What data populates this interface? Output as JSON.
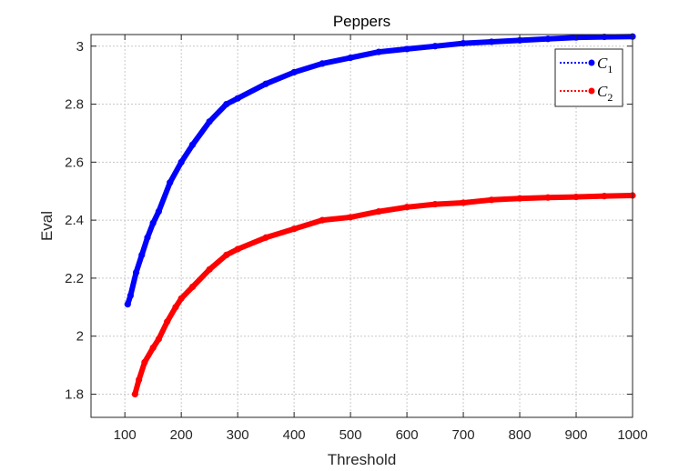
{
  "chart_data": {
    "type": "line",
    "title": "Peppers",
    "xlabel": "Threshold",
    "ylabel": "Eval",
    "xlim": [
      40,
      1000
    ],
    "ylim": [
      1.72,
      3.04
    ],
    "xticks": [
      100,
      200,
      300,
      400,
      500,
      600,
      700,
      800,
      900,
      1000
    ],
    "yticks": [
      1.8,
      2,
      2.2,
      2.4,
      2.6,
      2.8,
      3
    ],
    "ytick_labels": [
      "1.8",
      "2",
      "2.2",
      "2.4",
      "2.6",
      "2.8",
      "3"
    ],
    "grid": true,
    "legend_position": "top-right",
    "series": [
      {
        "name": "C",
        "name_subscript": "1",
        "color": "#0000ff",
        "x": [
          105,
          110,
          120,
          130,
          140,
          150,
          160,
          180,
          200,
          220,
          250,
          280,
          300,
          350,
          400,
          450,
          500,
          550,
          600,
          650,
          700,
          750,
          800,
          850,
          900,
          950,
          1000
        ],
        "y": [
          2.11,
          2.14,
          2.22,
          2.28,
          2.34,
          2.39,
          2.43,
          2.53,
          2.6,
          2.66,
          2.74,
          2.8,
          2.82,
          2.87,
          2.91,
          2.94,
          2.96,
          2.98,
          2.99,
          3.0,
          3.01,
          3.015,
          3.02,
          3.025,
          3.03,
          3.032,
          3.033
        ]
      },
      {
        "name": "C",
        "name_subscript": "2",
        "color": "#ff0000",
        "x": [
          118,
          125,
          135,
          150,
          160,
          175,
          190,
          200,
          220,
          250,
          280,
          300,
          350,
          400,
          450,
          500,
          550,
          600,
          650,
          700,
          750,
          800,
          850,
          900,
          950,
          1000
        ],
        "y": [
          1.8,
          1.85,
          1.91,
          1.96,
          1.99,
          2.05,
          2.1,
          2.13,
          2.17,
          2.23,
          2.28,
          2.3,
          2.34,
          2.37,
          2.4,
          2.41,
          2.43,
          2.445,
          2.455,
          2.46,
          2.47,
          2.475,
          2.478,
          2.48,
          2.483,
          2.485
        ]
      }
    ]
  }
}
